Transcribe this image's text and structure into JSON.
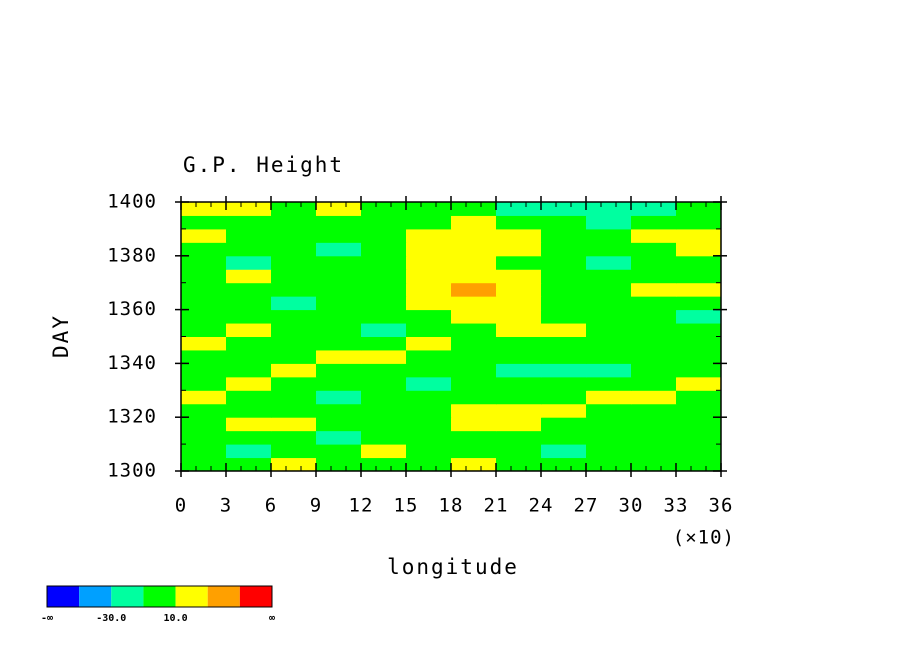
{
  "chart_data": {
    "type": "heatmap",
    "title": "G.P. Height",
    "x_label": "longitude",
    "y_label": "DAY",
    "x_multiplier": "(×10)",
    "xlim": [
      0,
      36
    ],
    "xticks": [
      0,
      3,
      6,
      9,
      12,
      15,
      18,
      21,
      24,
      27,
      30,
      33,
      36
    ],
    "ylim": [
      1300,
      1400
    ],
    "yticks": [
      1300,
      1320,
      1340,
      1360,
      1380,
      1400
    ],
    "x": [
      1.5,
      4.5,
      7.5,
      10.5,
      13.5,
      16.5,
      19.5,
      22.5,
      25.5,
      28.5,
      31.5,
      34.5
    ],
    "y": [
      1302.5,
      1307.5,
      1312.5,
      1317.5,
      1322.5,
      1327.5,
      1332.5,
      1337.5,
      1342.5,
      1347.5,
      1352.5,
      1357.5,
      1362.5,
      1367.5,
      1372.5,
      1377.5,
      1382.5,
      1387.5,
      1392.5,
      1397.5
    ],
    "z": [
      [
        5,
        0,
        12,
        5,
        0,
        8,
        15,
        5,
        0,
        2,
        5,
        8
      ],
      [
        -5,
        -12,
        -3,
        5,
        12,
        8,
        3,
        -5,
        -12,
        -8,
        0,
        5
      ],
      [
        3,
        8,
        -5,
        -15,
        -8,
        0,
        5,
        -3,
        -8,
        -3,
        5,
        3
      ],
      [
        -3,
        12,
        15,
        5,
        -5,
        8,
        15,
        12,
        5,
        0,
        -5,
        3
      ],
      [
        8,
        -3,
        -8,
        5,
        3,
        -5,
        12,
        18,
        15,
        8,
        3,
        5
      ],
      [
        12,
        5,
        -5,
        -12,
        -5,
        3,
        8,
        -3,
        5,
        12,
        15,
        8
      ],
      [
        5,
        12,
        8,
        3,
        -8,
        -12,
        -5,
        3,
        -3,
        -8,
        5,
        12
      ],
      [
        -3,
        5,
        12,
        8,
        5,
        -5,
        -8,
        -12,
        -15,
        -22,
        -8,
        3
      ],
      [
        8,
        -5,
        5,
        12,
        15,
        8,
        3,
        -5,
        -8,
        -5,
        5,
        8
      ],
      [
        12,
        8,
        -3,
        -8,
        5,
        12,
        8,
        3,
        5,
        -3,
        -8,
        5
      ],
      [
        5,
        15,
        8,
        -5,
        -12,
        -5,
        8,
        15,
        12,
        5,
        3,
        -5
      ],
      [
        -8,
        -3,
        5,
        3,
        -5,
        5,
        18,
        12,
        5,
        -3,
        -8,
        -12
      ],
      [
        3,
        -8,
        -12,
        -5,
        3,
        12,
        22,
        15,
        8,
        3,
        -5,
        5
      ],
      [
        8,
        5,
        -3,
        -8,
        5,
        25,
        35,
        18,
        8,
        5,
        12,
        15
      ],
      [
        5,
        12,
        8,
        -3,
        -8,
        12,
        22,
        12,
        -3,
        -8,
        3,
        8
      ],
      [
        -5,
        -12,
        -8,
        -3,
        3,
        12,
        15,
        5,
        -5,
        -12,
        -5,
        3
      ],
      [
        8,
        3,
        -8,
        -15,
        5,
        22,
        28,
        15,
        5,
        -3,
        8,
        12
      ],
      [
        12,
        5,
        -3,
        -8,
        3,
        15,
        28,
        18,
        8,
        3,
        12,
        15
      ],
      [
        5,
        8,
        3,
        -5,
        -3,
        5,
        12,
        8,
        -5,
        -12,
        -8,
        5
      ],
      [
        18,
        12,
        8,
        12,
        5,
        3,
        5,
        -12,
        -15,
        -25,
        -30,
        5
      ]
    ],
    "levels": [
      -50,
      -30,
      -10,
      10,
      30,
      50
    ],
    "colors": [
      "#0000ff",
      "#00a0ff",
      "#00ffa0",
      "#00ff00",
      "#ffff00",
      "#ffa000",
      "#ff0000"
    ],
    "colorbar_labels": [
      {
        "value": -30,
        "label": "-30.0"
      },
      {
        "value": 10,
        "label": "10.0"
      }
    ],
    "colorbar_ends": [
      "-∞",
      "∞"
    ]
  }
}
